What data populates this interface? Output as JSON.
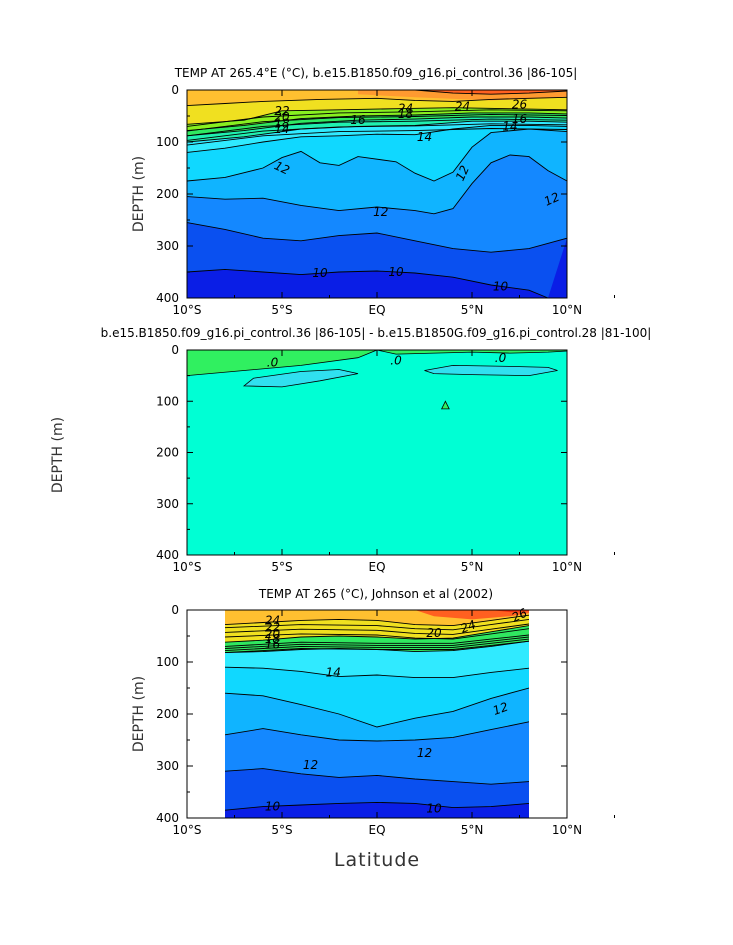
{
  "chart_data": [
    {
      "type": "contour",
      "title": "TEMP AT 265.4°E (°C), b.e15.B1850.f09_g16.pi_control.36  |86-105|",
      "xlabel": "",
      "ylabel": "DEPTH (m)",
      "xlim": [
        -10,
        10
      ],
      "ylim": [
        400,
        0
      ],
      "xticks": [
        "10°S",
        "5°S",
        "EQ",
        "5°N",
        "10°N"
      ],
      "yticks": [
        "0",
        "100",
        "200",
        "300",
        "400"
      ],
      "contour_labels": [
        "26",
        "24",
        "22",
        "20",
        "18",
        "16",
        "14",
        "12",
        "10"
      ],
      "levels": [
        10,
        12,
        14,
        16,
        18,
        20,
        22,
        24,
        26
      ]
    },
    {
      "type": "contour",
      "title": "b.e15.B1850.f09_g16.pi_control.36  |86-105|  - b.e15.B1850G.f09_g16.pi_control.28  |81-100|",
      "xlabel": "",
      "ylabel": "DEPTH (m)",
      "xlim": [
        -10,
        10
      ],
      "ylim": [
        400,
        0
      ],
      "xticks": [
        "10°S",
        "5°S",
        "EQ",
        "5°N",
        "10°N"
      ],
      "yticks": [
        "0",
        "100",
        "200",
        "300",
        "400"
      ],
      "contour_labels": [
        ".0",
        ".0",
        ".0"
      ],
      "levels": [
        0
      ]
    },
    {
      "type": "contour",
      "title": "TEMP AT 265 (°C), Johnson et al (2002)",
      "xlabel": "Latitude",
      "ylabel": "DEPTH (m)",
      "xlim": [
        -10,
        10
      ],
      "ylim": [
        400,
        0
      ],
      "data_lat_range": [
        -8,
        8
      ],
      "xticks": [
        "10°S",
        "5°S",
        "EQ",
        "5°N",
        "10°N"
      ],
      "yticks": [
        "0",
        "100",
        "200",
        "300",
        "400"
      ],
      "contour_labels": [
        "24",
        "22",
        "20",
        "18",
        "16",
        "14",
        "12",
        "12",
        "12",
        "10",
        "10",
        "20",
        "24",
        "26"
      ],
      "levels": [
        10,
        12,
        14,
        16,
        18,
        20,
        22,
        24,
        26
      ]
    }
  ],
  "colors": {
    "c8": "#0a1ee6",
    "c10": "#0a50f0",
    "c11": "#1488ff",
    "c12": "#10b4ff",
    "c13": "#10d8ff",
    "c14": "#30eaff",
    "c16": "#20f0b0",
    "c18": "#30e860",
    "c20": "#88f020",
    "c22": "#f0e020",
    "c24": "#ffc030",
    "c26": "#ff9a30",
    "c28": "#ff6020",
    "c30": "#f03010",
    "diff_bg": "#00ffd4",
    "diff_neg": "#30e0f0",
    "diff_pos": "#30f060"
  }
}
